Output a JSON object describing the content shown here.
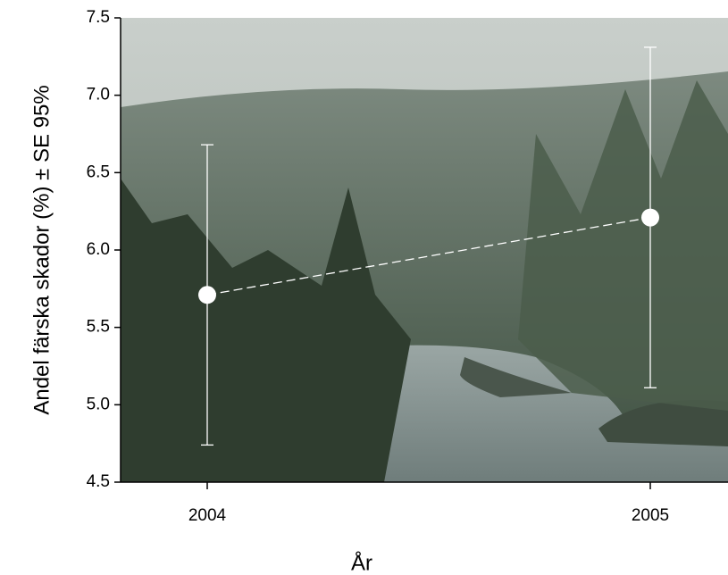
{
  "chart_data": {
    "type": "line",
    "x_label": "År",
    "y_label": "Andel färska skador (%) ± SE 95%",
    "categories": [
      "2004",
      "2005"
    ],
    "series": [
      {
        "values": [
          5.71,
          6.21
        ],
        "errors": [
          0.97,
          1.1
        ],
        "color": "#ffffff"
      }
    ],
    "ylim": [
      4.5,
      7.5
    ],
    "yticks": [
      {
        "value": 4.5,
        "label": "4.5"
      },
      {
        "value": 5,
        "label": "5.0"
      },
      {
        "value": 5.5,
        "label": "5.5"
      },
      {
        "value": 6,
        "label": "6.0"
      },
      {
        "value": 6.5,
        "label": "6.5"
      },
      {
        "value": 7,
        "label": "7.0"
      },
      {
        "value": 7.5,
        "label": "7.5"
      }
    ],
    "line_style": "dashed"
  }
}
